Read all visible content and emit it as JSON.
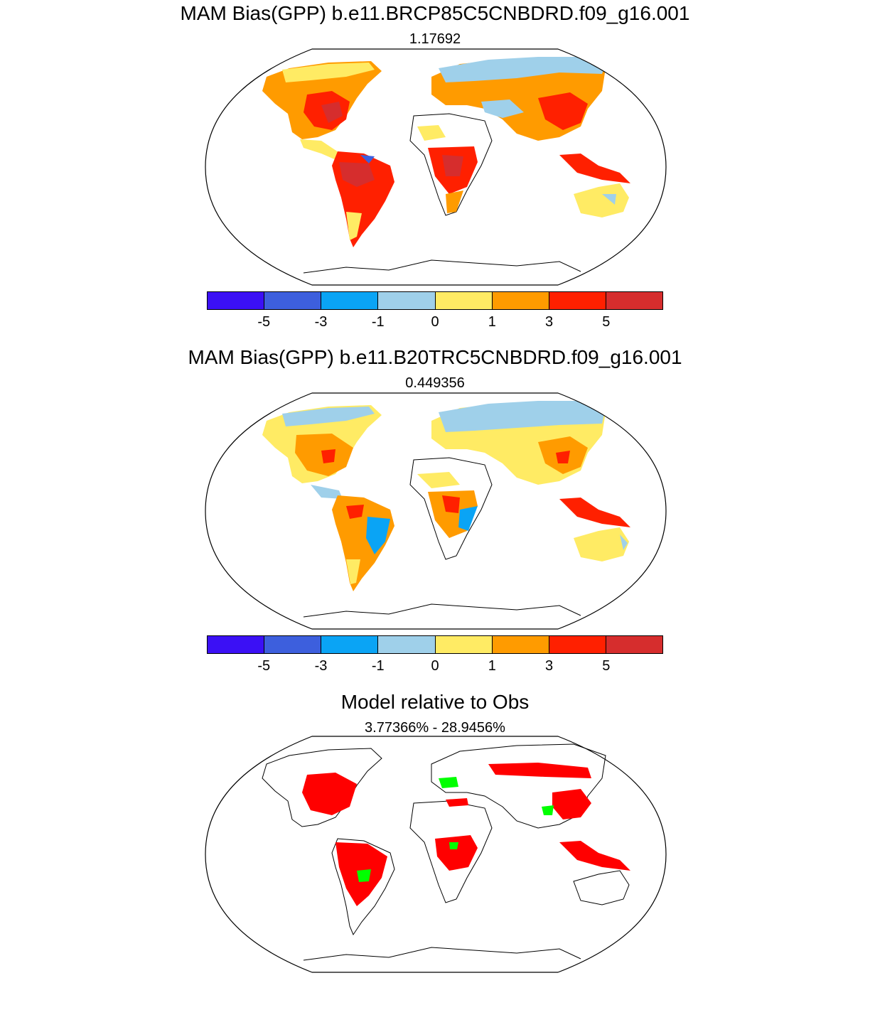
{
  "panels": [
    {
      "title": "MAM Bias(GPP) b.e11.BRCP85C5CNBDRD.f09_g16.001",
      "subtitle": "1.17692"
    },
    {
      "title": "MAM Bias(GPP) b.e11.B20TRC5CNBDRD.f09_g16.001",
      "subtitle": "0.449356"
    },
    {
      "title": "Model relative to Obs",
      "subtitle": "3.77366% - 28.9456%"
    }
  ],
  "colorbar": {
    "colors": [
      "#3b10f5",
      "#3d5fdd",
      "#0aa4f5",
      "#9fd0ea",
      "#ffeb64",
      "#ff9b00",
      "#ff2000",
      "#d62d2d"
    ],
    "labels": [
      "-5",
      "-3",
      "-1",
      "0",
      "1",
      "3",
      "5"
    ]
  },
  "relative_colors": {
    "worse": "#ff0000",
    "better": "#00ff00"
  }
}
